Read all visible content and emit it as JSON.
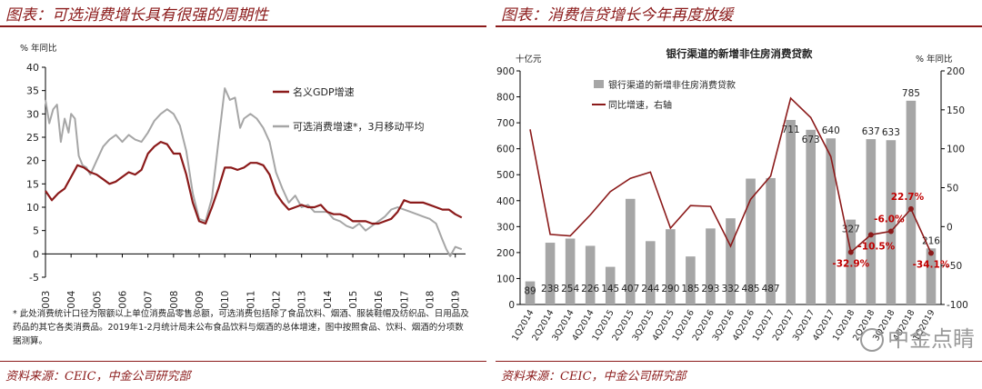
{
  "left": {
    "heading": "图表：可选消费增长具有很强的周期性",
    "note": "* 此处消费统计口径为限额以上单位消费品零售总额，可选消费包括除了食品饮料、烟酒、服装鞋帽及纺织品、日用品及药品的其它各类消费品。2019年1-2月统计局未公布食品饮料与烟酒的总体增速，图中按照食品、饮料、烟酒的分项数据测算。",
    "source": "资料来源：CEIC，中金公司研究部"
  },
  "right": {
    "heading": "图表：消费信贷增长今年再度放缓",
    "source": "资料来源：CEIC，中金公司研究部",
    "watermark": "中金点睛"
  },
  "chart_data": [
    {
      "type": "line",
      "title": "",
      "ylabel": "% 年同比",
      "ylim": [
        -5,
        40
      ],
      "yticks": [
        -5,
        0,
        5,
        10,
        15,
        20,
        25,
        30,
        35,
        40
      ],
      "xlim": [
        2003,
        2019.4
      ],
      "xticks": [
        2003,
        2004,
        2005,
        2006,
        2007,
        2008,
        2009,
        2010,
        2011,
        2012,
        2013,
        2014,
        2015,
        2016,
        2017,
        2018,
        2019
      ],
      "legend_position": "top-right",
      "series": [
        {
          "name": "名义GDP增速",
          "color": "#8b1a1a",
          "points": [
            [
              2003.0,
              13.5
            ],
            [
              2003.25,
              11.5
            ],
            [
              2003.5,
              13
            ],
            [
              2003.75,
              14
            ],
            [
              2004.0,
              16.5
            ],
            [
              2004.25,
              19
            ],
            [
              2004.5,
              18.5
            ],
            [
              2004.75,
              17.5
            ],
            [
              2005.0,
              17
            ],
            [
              2005.25,
              16
            ],
            [
              2005.5,
              15
            ],
            [
              2005.75,
              15.5
            ],
            [
              2006.0,
              16.5
            ],
            [
              2006.25,
              17.5
            ],
            [
              2006.5,
              17
            ],
            [
              2006.75,
              18
            ],
            [
              2007.0,
              21.5
            ],
            [
              2007.25,
              23
            ],
            [
              2007.5,
              24
            ],
            [
              2007.75,
              23.5
            ],
            [
              2008.0,
              21.5
            ],
            [
              2008.25,
              21.5
            ],
            [
              2008.5,
              17
            ],
            [
              2008.75,
              11
            ],
            [
              2009.0,
              7
            ],
            [
              2009.25,
              6.5
            ],
            [
              2009.5,
              10
            ],
            [
              2009.75,
              14
            ],
            [
              2010.0,
              18.5
            ],
            [
              2010.25,
              18.5
            ],
            [
              2010.5,
              18
            ],
            [
              2010.75,
              18.5
            ],
            [
              2011.0,
              19.5
            ],
            [
              2011.25,
              19.5
            ],
            [
              2011.5,
              19
            ],
            [
              2011.75,
              17
            ],
            [
              2012.0,
              13
            ],
            [
              2012.25,
              11
            ],
            [
              2012.5,
              9.5
            ],
            [
              2012.75,
              10
            ],
            [
              2013.0,
              10.5
            ],
            [
              2013.25,
              10
            ],
            [
              2013.5,
              10
            ],
            [
              2013.75,
              10.5
            ],
            [
              2014.0,
              9
            ],
            [
              2014.25,
              8.5
            ],
            [
              2014.5,
              8.5
            ],
            [
              2014.75,
              8
            ],
            [
              2015.0,
              7
            ],
            [
              2015.25,
              7
            ],
            [
              2015.5,
              7
            ],
            [
              2015.75,
              6.5
            ],
            [
              2016.0,
              6.5
            ],
            [
              2016.25,
              7
            ],
            [
              2016.5,
              7.5
            ],
            [
              2016.75,
              9
            ],
            [
              2017.0,
              11.5
            ],
            [
              2017.25,
              11
            ],
            [
              2017.5,
              11
            ],
            [
              2017.75,
              11
            ],
            [
              2018.0,
              10.5
            ],
            [
              2018.25,
              10
            ],
            [
              2018.5,
              9.5
            ],
            [
              2018.75,
              9.5
            ],
            [
              2019.0,
              8.5
            ],
            [
              2019.25,
              7.8
            ]
          ]
        },
        {
          "name": "可选消费增速*，3月移动平均",
          "color": "#a6a6a6",
          "points": [
            [
              2003.0,
              33
            ],
            [
              2003.15,
              28
            ],
            [
              2003.3,
              31
            ],
            [
              2003.45,
              32
            ],
            [
              2003.6,
              24
            ],
            [
              2003.75,
              29
            ],
            [
              2003.9,
              26
            ],
            [
              2004.0,
              30
            ],
            [
              2004.15,
              29
            ],
            [
              2004.3,
              21
            ],
            [
              2004.45,
              19
            ],
            [
              2004.6,
              18.5
            ],
            [
              2004.75,
              17
            ],
            [
              2005.0,
              20
            ],
            [
              2005.25,
              23
            ],
            [
              2005.5,
              24.5
            ],
            [
              2005.75,
              25.5
            ],
            [
              2006.0,
              24
            ],
            [
              2006.25,
              25.5
            ],
            [
              2006.5,
              24.5
            ],
            [
              2006.75,
              24
            ],
            [
              2007.0,
              26
            ],
            [
              2007.25,
              28.5
            ],
            [
              2007.5,
              30
            ],
            [
              2007.75,
              31
            ],
            [
              2008.0,
              30
            ],
            [
              2008.25,
              27.5
            ],
            [
              2008.5,
              22
            ],
            [
              2008.75,
              13
            ],
            [
              2009.0,
              7.5
            ],
            [
              2009.25,
              7
            ],
            [
              2009.5,
              12
            ],
            [
              2009.75,
              24
            ],
            [
              2010.0,
              35.5
            ],
            [
              2010.2,
              33
            ],
            [
              2010.4,
              33.5
            ],
            [
              2010.6,
              27
            ],
            [
              2010.75,
              29
            ],
            [
              2011.0,
              30
            ],
            [
              2011.25,
              29
            ],
            [
              2011.5,
              27
            ],
            [
              2011.75,
              24
            ],
            [
              2012.0,
              17.5
            ],
            [
              2012.25,
              14
            ],
            [
              2012.5,
              11
            ],
            [
              2012.75,
              12.5
            ],
            [
              2013.0,
              10
            ],
            [
              2013.25,
              10.5
            ],
            [
              2013.5,
              9
            ],
            [
              2013.75,
              9
            ],
            [
              2014.0,
              9
            ],
            [
              2014.25,
              7.5
            ],
            [
              2014.5,
              7
            ],
            [
              2014.75,
              6
            ],
            [
              2015.0,
              5.5
            ],
            [
              2015.25,
              6.5
            ],
            [
              2015.5,
              5
            ],
            [
              2015.75,
              6
            ],
            [
              2016.0,
              7
            ],
            [
              2016.25,
              8
            ],
            [
              2016.5,
              9.5
            ],
            [
              2016.75,
              10
            ],
            [
              2017.0,
              9.5
            ],
            [
              2017.25,
              9
            ],
            [
              2017.5,
              8.5
            ],
            [
              2017.75,
              8
            ],
            [
              2018.0,
              7.5
            ],
            [
              2018.25,
              6.5
            ],
            [
              2018.5,
              3
            ],
            [
              2018.65,
              1
            ],
            [
              2018.8,
              -0.5
            ],
            [
              2019.0,
              1.5
            ],
            [
              2019.25,
              1
            ]
          ]
        }
      ]
    },
    {
      "type": "bar+line",
      "title": "银行渠道的新增非住房消费贷款",
      "ylabel_left": "十亿元",
      "ylabel_right": "% 年同比",
      "ylim_left": [
        0,
        900
      ],
      "yticks_left": [
        0,
        100,
        200,
        300,
        400,
        500,
        600,
        700,
        800,
        900
      ],
      "ylim_right": [
        -100,
        200
      ],
      "yticks_right": [
        -100,
        -50,
        0,
        50,
        100,
        150,
        200
      ],
      "legend_position": "top-left",
      "categories": [
        "1Q2014",
        "2Q2014",
        "3Q2014",
        "4Q2014",
        "1Q2015",
        "2Q2015",
        "3Q2015",
        "4Q2015",
        "1Q2016",
        "2Q2016",
        "3Q2016",
        "4Q2016",
        "1Q2017",
        "2Q2017",
        "3Q2017",
        "4Q2017",
        "1Q2018",
        "2Q2018",
        "3Q2018",
        "4Q2018",
        "1Q2019"
      ],
      "series": [
        {
          "name": "银行渠道的新增非住房消费贷款",
          "kind": "bar",
          "axis": "left",
          "color": "#a6a6a6",
          "values": [
            89,
            238,
            254,
            226,
            145,
            407,
            244,
            290,
            185,
            293,
            332,
            485,
            487,
            711,
            673,
            640,
            327,
            637,
            633,
            785,
            216
          ],
          "data_labels": [
            "89",
            "238",
            "254",
            "226",
            "145",
            "407",
            "244",
            "290",
            "185",
            "293",
            "332",
            "485",
            "487",
            "711",
            "673",
            "640",
            "327",
            "637",
            "633",
            "785",
            "216"
          ]
        },
        {
          "name": "同比增速，右轴",
          "kind": "line",
          "axis": "right",
          "color": "#8b1a1a",
          "values": [
            125,
            -10,
            -12,
            15,
            45,
            62,
            70,
            -2,
            27,
            26,
            -25,
            35,
            65,
            165,
            140,
            90,
            -32.9,
            -10.5,
            -6.0,
            22.7,
            -34.1
          ],
          "data_labels": [
            "",
            "",
            "",
            "",
            "",
            "",
            "",
            "",
            "",
            "",
            "",
            "",
            "",
            "",
            "",
            "",
            "-32.9%",
            "-10.5%",
            "-6.0%",
            "22.7%",
            "-34.1%"
          ]
        }
      ]
    }
  ]
}
